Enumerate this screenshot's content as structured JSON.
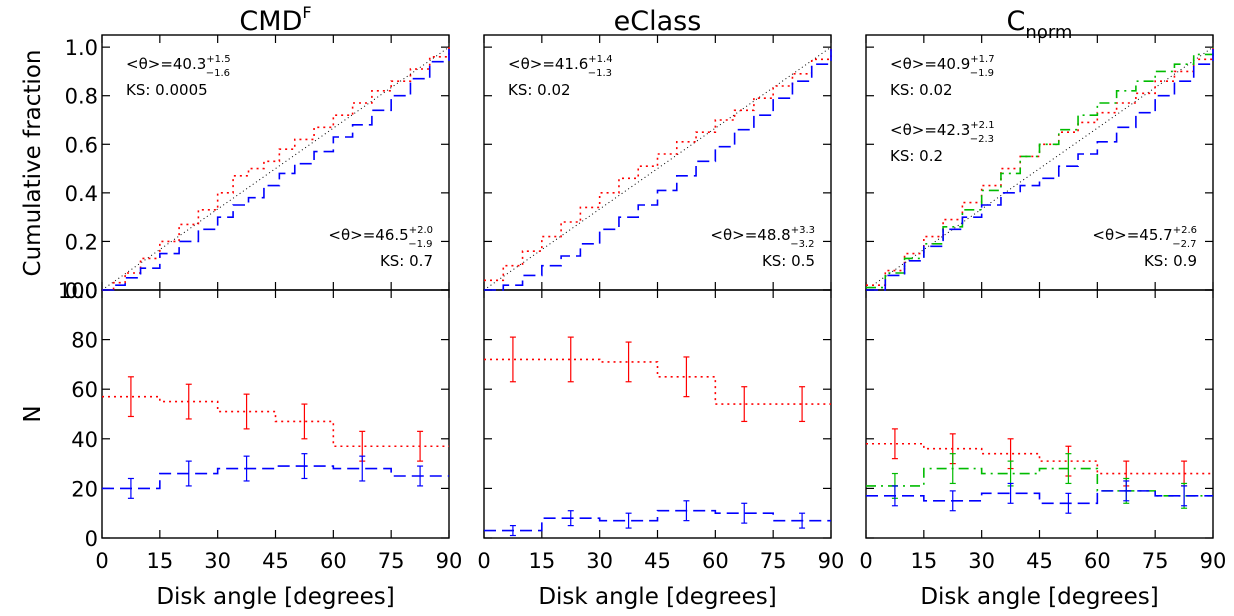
{
  "axis_labels": {
    "x": "Disk angle [degrees]",
    "y_top": "Cumulative fraction",
    "y_bottom": "N"
  },
  "ticks": {
    "x": [
      "0",
      "15",
      "30",
      "45",
      "60",
      "75",
      "90"
    ],
    "y_top": [
      "0.0",
      "0.2",
      "0.4",
      "0.6",
      "0.8",
      "1.0"
    ],
    "y_bottom": [
      "0",
      "20",
      "40",
      "60",
      "80",
      "100"
    ]
  },
  "colors": {
    "red": "#ff0000",
    "blue": "#0000ff",
    "green": "#00bb00",
    "reference": "#000000",
    "frame": "#000000"
  },
  "chart_data": [
    {
      "panel": "CMD-F",
      "title": "CMD",
      "title_sup": "F",
      "xlim": [
        0,
        90
      ],
      "top": {
        "type": "line",
        "ylabel": "Cumulative fraction",
        "ylim": [
          0,
          1.05
        ],
        "annotations": [
          {
            "color": "#000000",
            "mean_text": "<θ>=40.3",
            "err_plus": "+1.5",
            "err_minus": "−1.6",
            "ks_text": "KS: 0.0005",
            "position": "top-left"
          },
          {
            "color": "#000000",
            "mean_text": "<θ>=46.5",
            "err_plus": "+2.0",
            "err_minus": "−1.9",
            "ks_text": "KS: 0.7",
            "position": "bottom-right"
          }
        ],
        "series": [
          {
            "color": "#ff0000",
            "style": "dotted",
            "x": [
              0,
              3,
              6,
              10,
              15,
              20,
              25,
              30,
              34,
              38,
              42,
              46,
              50,
              55,
              60,
              65,
              70,
              75,
              80,
              85,
              90
            ],
            "y": [
              0,
              0.03,
              0.07,
              0.13,
              0.2,
              0.27,
              0.33,
              0.4,
              0.47,
              0.5,
              0.53,
              0.58,
              0.62,
              0.67,
              0.72,
              0.77,
              0.82,
              0.86,
              0.91,
              0.96,
              1.0
            ]
          },
          {
            "color": "#0000ff",
            "style": "dashed",
            "x": [
              0,
              3,
              6,
              10,
              15,
              20,
              25,
              30,
              34,
              38,
              42,
              46,
              50,
              55,
              60,
              65,
              70,
              75,
              80,
              85,
              90
            ],
            "y": [
              0,
              0.02,
              0.05,
              0.09,
              0.15,
              0.2,
              0.25,
              0.3,
              0.35,
              0.38,
              0.43,
              0.48,
              0.52,
              0.57,
              0.63,
              0.68,
              0.74,
              0.8,
              0.87,
              0.94,
              1.0
            ]
          }
        ]
      },
      "bottom": {
        "type": "line",
        "ylabel": "N",
        "ylim": [
          0,
          100
        ],
        "series": [
          {
            "color": "#ff0000",
            "style": "dotted",
            "x": [
              7.5,
              22.5,
              37.5,
              52.5,
              67.5,
              82.5
            ],
            "y": [
              57,
              55,
              51,
              47,
              37,
              37
            ],
            "err": [
              8,
              7,
              7,
              7,
              6,
              6
            ]
          },
          {
            "color": "#0000ff",
            "style": "dashed",
            "x": [
              7.5,
              22.5,
              37.5,
              52.5,
              67.5,
              82.5
            ],
            "y": [
              20,
              26,
              28,
              29,
              28,
              25
            ],
            "err": [
              4,
              5,
              5,
              5,
              5,
              4
            ]
          }
        ]
      }
    },
    {
      "panel": "eClass",
      "title": "eClass",
      "title_sup": "",
      "xlim": [
        0,
        90
      ],
      "top": {
        "type": "line",
        "ylabel": "",
        "ylim": [
          0,
          1.05
        ],
        "annotations": [
          {
            "color": "#000000",
            "mean_text": "<θ>=41.6",
            "err_plus": "+1.4",
            "err_minus": "−1.3",
            "ks_text": "KS: 0.02",
            "position": "top-left"
          },
          {
            "color": "#000000",
            "mean_text": "<θ>=48.8",
            "err_plus": "+3.3",
            "err_minus": "−3.2",
            "ks_text": "KS: 0.5",
            "position": "bottom-right"
          }
        ],
        "series": [
          {
            "color": "#ff0000",
            "style": "dotted",
            "x": [
              0,
              5,
              10,
              15,
              20,
              25,
              30,
              35,
              40,
              45,
              50,
              55,
              60,
              65,
              70,
              75,
              80,
              85,
              90
            ],
            "y": [
              0.04,
              0.1,
              0.16,
              0.22,
              0.28,
              0.34,
              0.4,
              0.46,
              0.51,
              0.56,
              0.61,
              0.65,
              0.7,
              0.74,
              0.79,
              0.84,
              0.89,
              0.95,
              1.0
            ]
          },
          {
            "color": "#0000ff",
            "style": "dashed",
            "x": [
              0,
              5,
              10,
              15,
              20,
              25,
              30,
              35,
              40,
              45,
              50,
              55,
              60,
              65,
              70,
              75,
              80,
              85,
              90
            ],
            "y": [
              0,
              0.02,
              0.06,
              0.1,
              0.14,
              0.19,
              0.25,
              0.3,
              0.35,
              0.41,
              0.47,
              0.53,
              0.59,
              0.66,
              0.72,
              0.79,
              0.86,
              0.93,
              1.0
            ]
          }
        ]
      },
      "bottom": {
        "type": "line",
        "ylabel": "",
        "ylim": [
          0,
          100
        ],
        "series": [
          {
            "color": "#ff0000",
            "style": "dotted",
            "x": [
              7.5,
              22.5,
              37.5,
              52.5,
              67.5,
              82.5
            ],
            "y": [
              72,
              72,
              71,
              65,
              54,
              54
            ],
            "err": [
              9,
              9,
              8,
              8,
              7,
              7
            ]
          },
          {
            "color": "#0000ff",
            "style": "dashed",
            "x": [
              7.5,
              22.5,
              37.5,
              52.5,
              67.5,
              82.5
            ],
            "y": [
              3,
              8,
              7,
              11,
              10,
              7
            ],
            "err": [
              2,
              3,
              3,
              4,
              4,
              3
            ]
          }
        ]
      }
    },
    {
      "panel": "C-norm",
      "title": "C",
      "title_sub": "norm",
      "xlim": [
        0,
        90
      ],
      "top": {
        "type": "line",
        "ylabel": "",
        "ylim": [
          0,
          1.05
        ],
        "annotations": [
          {
            "color": "#000000",
            "mean_text": "<θ>=40.9",
            "err_plus": "+1.7",
            "err_minus": "−1.9",
            "ks_text": "KS: 0.02",
            "position": "top-left"
          },
          {
            "color": "#000000",
            "mean_text": "<θ>=42.3",
            "err_plus": "+2.1",
            "err_minus": "−2.3",
            "ks_text": "KS: 0.2",
            "position": "middle-left"
          },
          {
            "color": "#000000",
            "mean_text": "<θ>=45.7",
            "err_plus": "+2.6",
            "err_minus": "−2.7",
            "ks_text": "KS: 0.9",
            "position": "bottom-right"
          }
        ],
        "series": [
          {
            "color": "#ff0000",
            "style": "dotted",
            "x": [
              0,
              5,
              10,
              15,
              20,
              25,
              30,
              35,
              40,
              45,
              50,
              55,
              60,
              65,
              70,
              75,
              80,
              85,
              90
            ],
            "y": [
              0.02,
              0.08,
              0.15,
              0.22,
              0.29,
              0.36,
              0.43,
              0.5,
              0.55,
              0.6,
              0.65,
              0.69,
              0.73,
              0.77,
              0.81,
              0.86,
              0.9,
              0.95,
              1.0
            ]
          },
          {
            "color": "#00bb00",
            "style": "dash-dot",
            "x": [
              0,
              5,
              10,
              15,
              20,
              25,
              30,
              35,
              40,
              45,
              50,
              55,
              60,
              65,
              70,
              75,
              80,
              85,
              90
            ],
            "y": [
              0.01,
              0.07,
              0.13,
              0.19,
              0.26,
              0.33,
              0.41,
              0.48,
              0.55,
              0.6,
              0.66,
              0.72,
              0.77,
              0.82,
              0.86,
              0.9,
              0.93,
              0.97,
              1.0
            ]
          },
          {
            "color": "#0000ff",
            "style": "dashed",
            "x": [
              0,
              5,
              10,
              15,
              20,
              25,
              30,
              35,
              40,
              45,
              50,
              55,
              60,
              65,
              70,
              75,
              80,
              85,
              90
            ],
            "y": [
              0,
              0.06,
              0.12,
              0.18,
              0.25,
              0.3,
              0.35,
              0.4,
              0.43,
              0.46,
              0.51,
              0.56,
              0.61,
              0.67,
              0.73,
              0.8,
              0.86,
              0.93,
              1.0
            ]
          }
        ]
      },
      "bottom": {
        "type": "line",
        "ylabel": "",
        "ylim": [
          0,
          100
        ],
        "series": [
          {
            "color": "#ff0000",
            "style": "dotted",
            "x": [
              7.5,
              22.5,
              37.5,
              52.5,
              67.5,
              82.5
            ],
            "y": [
              38,
              36,
              34,
              31,
              26,
              26
            ],
            "err": [
              6,
              6,
              6,
              6,
              5,
              5
            ]
          },
          {
            "color": "#00bb00",
            "style": "dash-dot",
            "x": [
              7.5,
              22.5,
              37.5,
              52.5,
              67.5,
              82.5
            ],
            "y": [
              21,
              28,
              26,
              28,
              19,
              17
            ],
            "err": [
              5,
              6,
              5,
              6,
              5,
              5
            ]
          },
          {
            "color": "#0000ff",
            "style": "dashed",
            "x": [
              7.5,
              22.5,
              37.5,
              52.5,
              67.5,
              82.5
            ],
            "y": [
              17,
              15,
              18,
              14,
              19,
              17
            ],
            "err": [
              4,
              4,
              4,
              4,
              4,
              4
            ]
          }
        ]
      }
    }
  ]
}
